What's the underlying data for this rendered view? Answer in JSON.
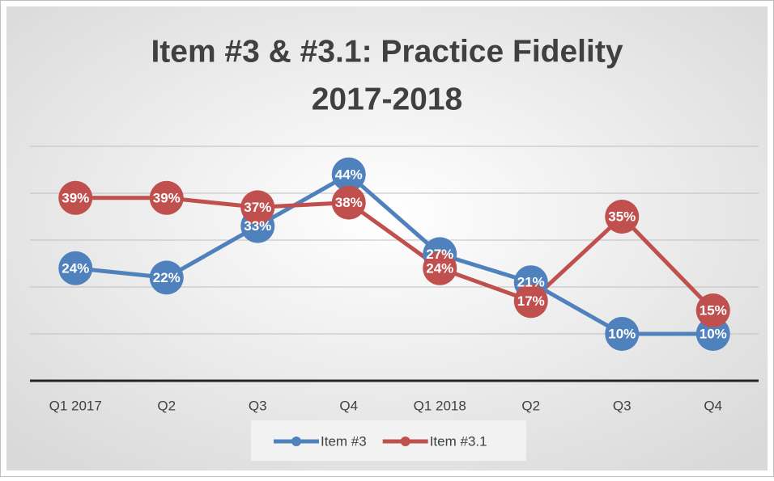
{
  "chart_data": {
    "type": "line",
    "title": [
      "Item #3 & #3.1: Practice Fidelity",
      "2017-2018"
    ],
    "categories": [
      "Q1 2017",
      "Q2",
      "Q3",
      "Q4",
      "Q1 2018",
      "Q2",
      "Q3",
      "Q4"
    ],
    "series": [
      {
        "name": "Item #3",
        "color": "#4f81bd",
        "values": [
          24,
          22,
          33,
          44,
          27,
          21,
          10,
          10
        ],
        "value_labels": [
          "24%",
          "22%",
          "33%",
          "44%",
          "27%",
          "21%",
          "10%",
          "10%"
        ]
      },
      {
        "name": "Item #3.1",
        "color": "#c0504d",
        "values": [
          39,
          39,
          37,
          38,
          24,
          17,
          35,
          15
        ],
        "value_labels": [
          "39%",
          "39%",
          "37%",
          "38%",
          "24%",
          "17%",
          "35%",
          "15%"
        ]
      }
    ],
    "ylim": [
      0,
      50
    ],
    "yticks": [
      0,
      10,
      20,
      30,
      40,
      50
    ],
    "grid": true,
    "legend": "bottom"
  }
}
